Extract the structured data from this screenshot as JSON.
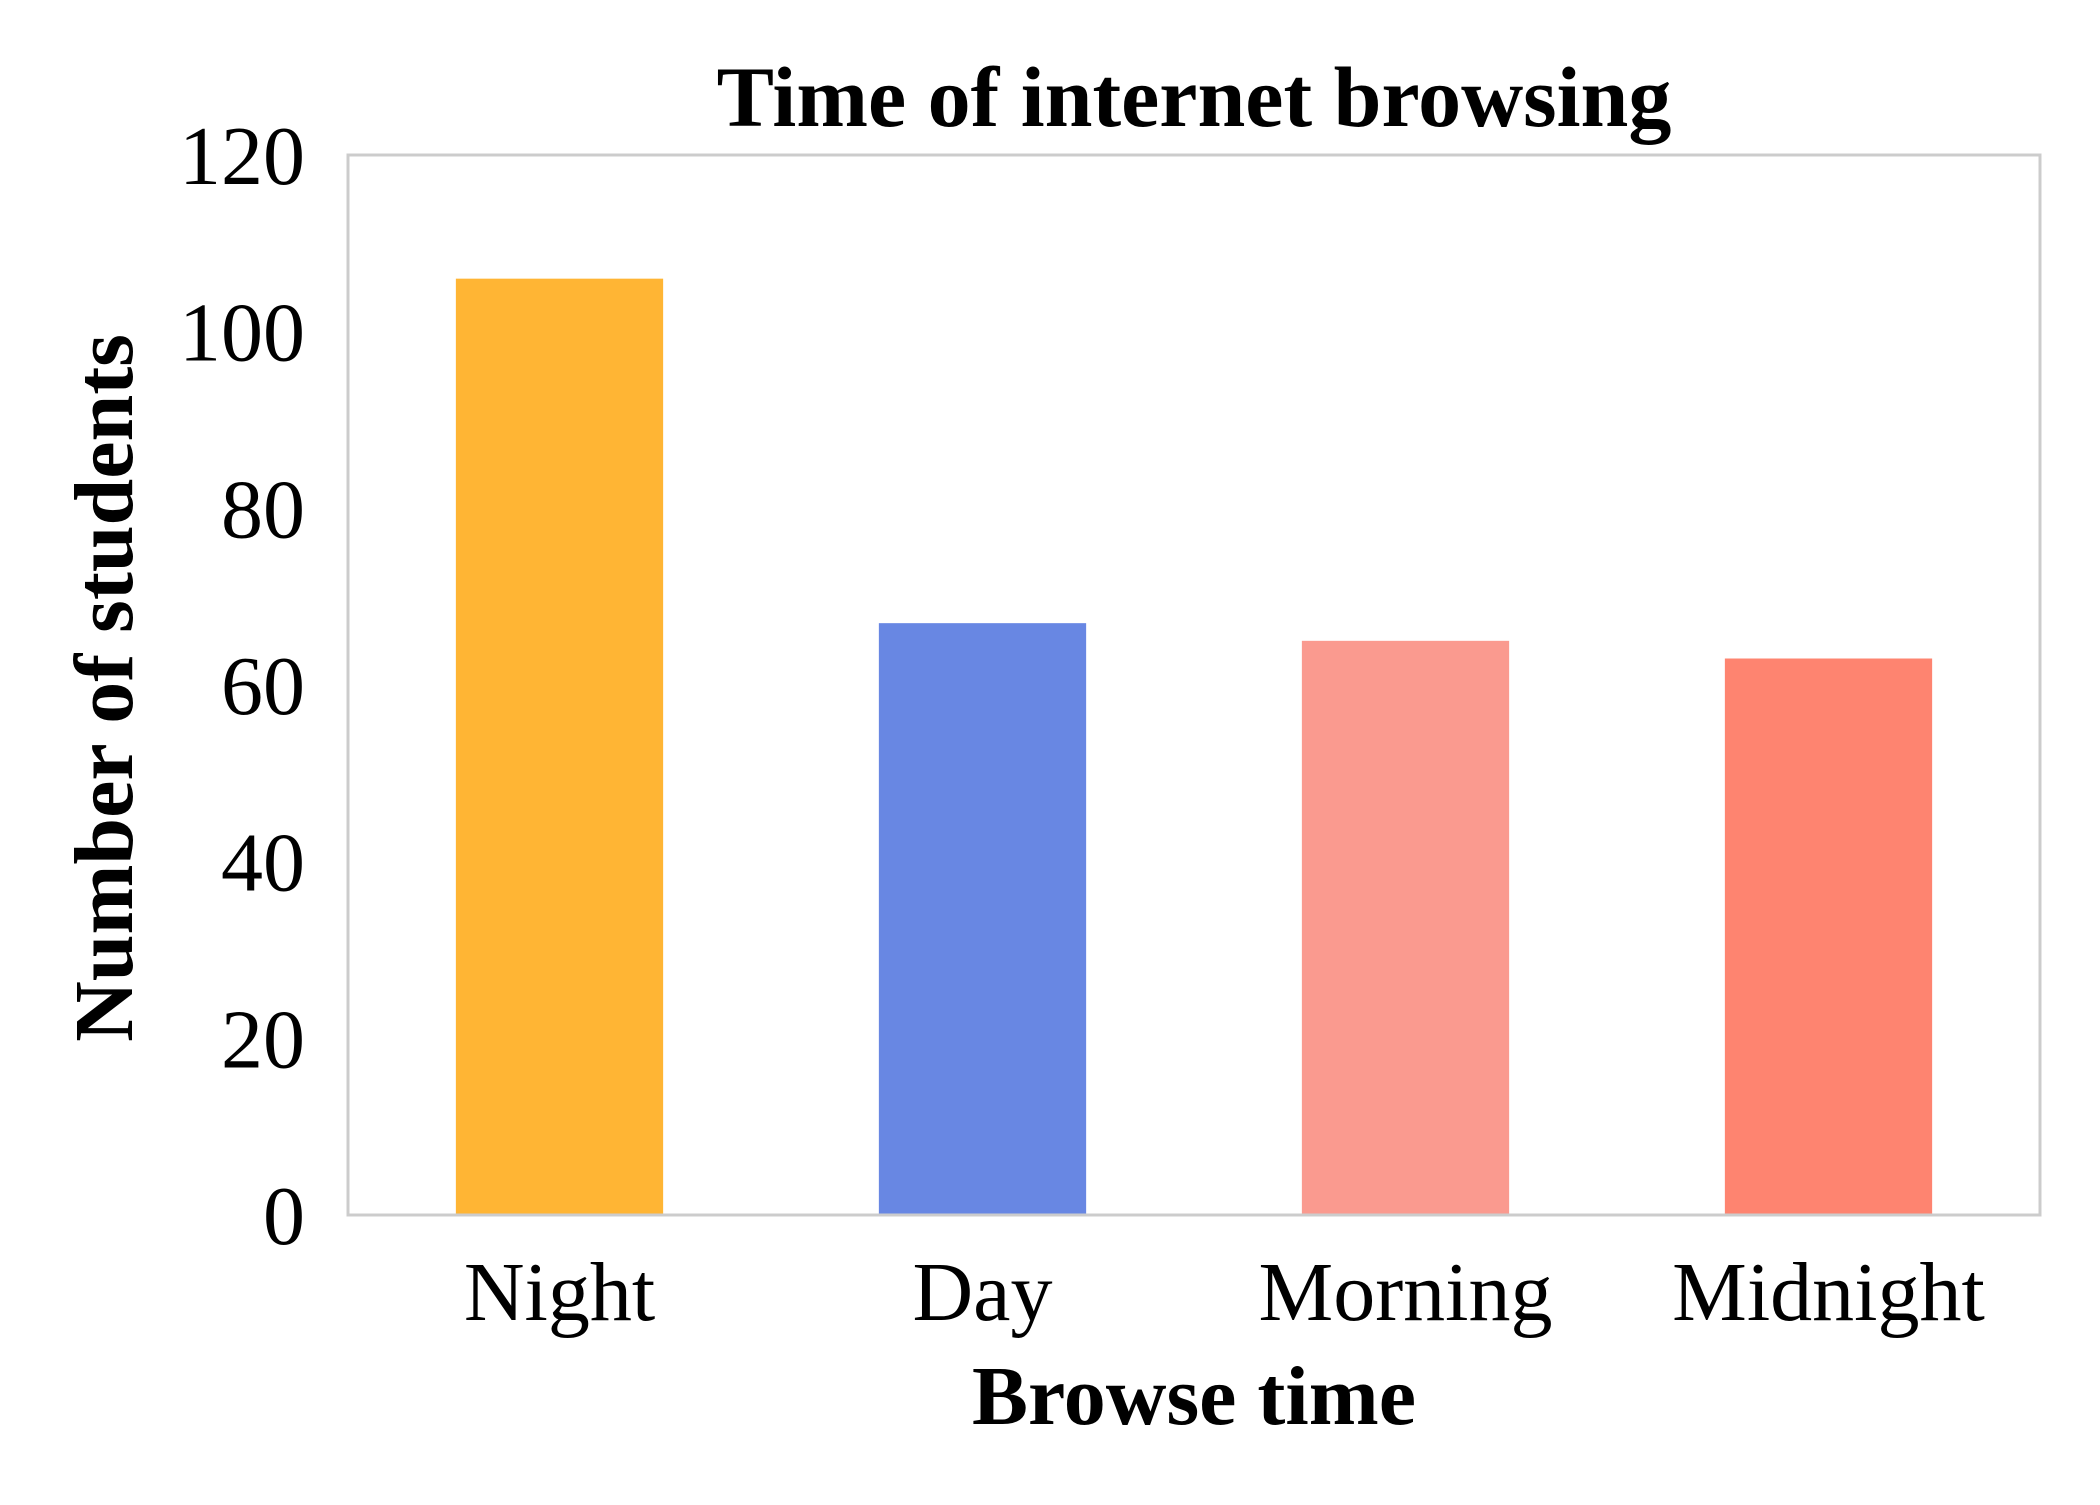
{
  "chart_data": {
    "type": "bar",
    "title": "Time of internet browsing",
    "xlabel": "Browse time",
    "ylabel": "Number of students",
    "categories": [
      "Night",
      "Day",
      "Morning",
      "Midnight"
    ],
    "values": [
      106,
      67,
      65,
      63
    ],
    "colors": [
      "#FFB534",
      "#6887E3",
      "#FA9A8F",
      "#FE8470"
    ],
    "ylim": [
      0,
      120
    ],
    "yticks": [
      0,
      20,
      40,
      60,
      80,
      100,
      120
    ],
    "grid": false,
    "frame_color": "#CCCCCC"
  }
}
